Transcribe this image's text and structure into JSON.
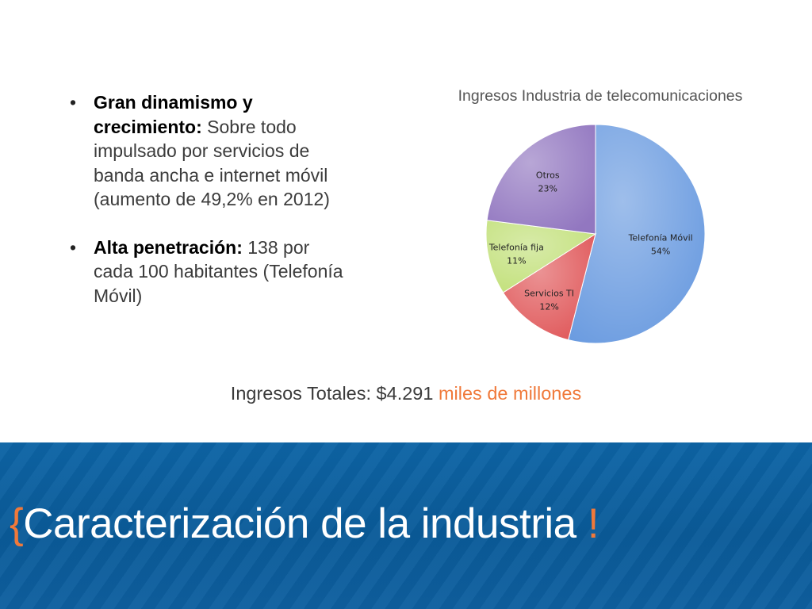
{
  "bullets": [
    {
      "bold": "Gran dinamismo y crecimiento",
      "sep": ":",
      "text": " Sobre todo impulsado por servicios de banda ancha e internet móvil (aumento de 49,2% en 2012)"
    },
    {
      "bold": "Alta penetración:",
      "sep": "",
      "text": " 138 por cada 100 habitantes (Telefonía Móvil)"
    }
  ],
  "bullet_symbol": "•",
  "total": {
    "text": "Ingresos Totales: $4.291 ",
    "accent": "miles de millones"
  },
  "title": {
    "open": "{",
    "text": "Caracterización de la industria ",
    "close": "!"
  },
  "chart_data": {
    "type": "pie",
    "title": "Ingresos Industria de telecomunicaciones",
    "slices": [
      {
        "label": "Telefonía Móvil",
        "value": 54,
        "pct": "54%",
        "color": "#6a9be0"
      },
      {
        "label": "Servicios TI",
        "value": 12,
        "pct": "12%",
        "color": "#e0585a"
      },
      {
        "label": "Telefonía fija",
        "value": 11,
        "pct": "11%",
        "color": "#c2e07a"
      },
      {
        "label": "Otros",
        "value": 23,
        "pct": "23%",
        "color": "#9277c0"
      }
    ],
    "legend": "none"
  }
}
